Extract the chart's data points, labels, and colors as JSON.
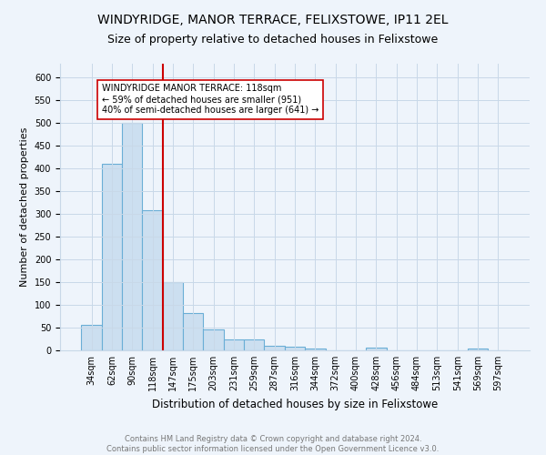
{
  "title": "WINDYRIDGE, MANOR TERRACE, FELIXSTOWE, IP11 2EL",
  "subtitle": "Size of property relative to detached houses in Felixstowe",
  "xlabel": "Distribution of detached houses by size in Felixstowe",
  "ylabel": "Number of detached properties",
  "bar_labels": [
    "34sqm",
    "62sqm",
    "90sqm",
    "118sqm",
    "147sqm",
    "175sqm",
    "203sqm",
    "231sqm",
    "259sqm",
    "287sqm",
    "316sqm",
    "344sqm",
    "372sqm",
    "400sqm",
    "428sqm",
    "456sqm",
    "484sqm",
    "513sqm",
    "541sqm",
    "569sqm",
    "597sqm"
  ],
  "bar_values": [
    57,
    410,
    500,
    308,
    150,
    83,
    46,
    25,
    25,
    11,
    8,
    5,
    0,
    0,
    6,
    0,
    0,
    0,
    0,
    5,
    0
  ],
  "bar_color": "#ccdff0",
  "bar_edge_color": "#6aaed6",
  "bar_linewidth": 0.8,
  "grid_color": "#c8d8e8",
  "bg_color": "#eef4fb",
  "red_line_x": 3.5,
  "red_line_color": "#cc0000",
  "annotation_text": "WINDYRIDGE MANOR TERRACE: 118sqm\n← 59% of detached houses are smaller (951)\n40% of semi-detached houses are larger (641) →",
  "annotation_box_color": "white",
  "annotation_box_edge": "#cc0000",
  "ylim": [
    0,
    630
  ],
  "yticks": [
    0,
    50,
    100,
    150,
    200,
    250,
    300,
    350,
    400,
    450,
    500,
    550,
    600
  ],
  "footer_text": "Contains HM Land Registry data © Crown copyright and database right 2024.\nContains public sector information licensed under the Open Government Licence v3.0.",
  "title_fontsize": 10,
  "subtitle_fontsize": 9,
  "xlabel_fontsize": 8.5,
  "ylabel_fontsize": 8,
  "tick_fontsize": 7,
  "annotation_fontsize": 7,
  "footer_fontsize": 6
}
